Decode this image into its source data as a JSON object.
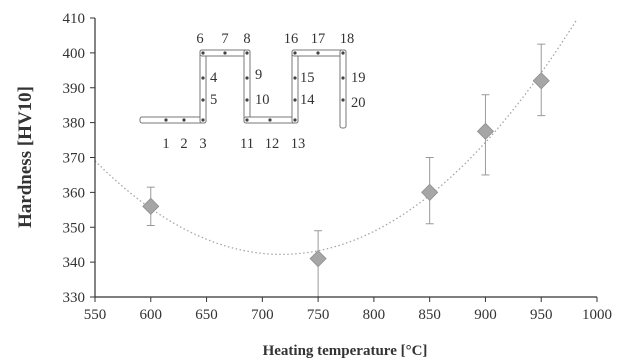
{
  "chart_data": {
    "type": "scatter",
    "xlabel": "Heating temperature [°C]",
    "ylabel": "Hardness [HV10]",
    "xlim": [
      550,
      1000
    ],
    "ylim": [
      330,
      410
    ],
    "x_ticks": [
      "550",
      "600",
      "650",
      "700",
      "750",
      "800",
      "850",
      "900",
      "950",
      "1000"
    ],
    "y_ticks": [
      "330",
      "340",
      "350",
      "360",
      "370",
      "380",
      "390",
      "400",
      "410"
    ],
    "grid": false,
    "points": [
      {
        "x": 600,
        "y": 356,
        "err_low": 5.5,
        "err_high": 5.5
      },
      {
        "x": 750,
        "y": 341,
        "err_low": 11,
        "err_high": 8
      },
      {
        "x": 850,
        "y": 360,
        "err_low": 9,
        "err_high": 10
      },
      {
        "x": 900,
        "y": 377.5,
        "err_low": 12.5,
        "err_high": 10.5
      },
      {
        "x": 950,
        "y": 392,
        "err_low": 10,
        "err_high": 10.5
      }
    ],
    "marker": "diamond",
    "marker_color": "#a6a6a6",
    "trendline": {
      "style": "dotted",
      "type": "polynomial",
      "color": "#a6a6a6"
    },
    "inset_labels": [
      "1",
      "2",
      "3",
      "4",
      "5",
      "6",
      "7",
      "8",
      "9",
      "10",
      "11",
      "12",
      "13",
      "14",
      "15",
      "16",
      "17",
      "18",
      "19",
      "20"
    ]
  }
}
